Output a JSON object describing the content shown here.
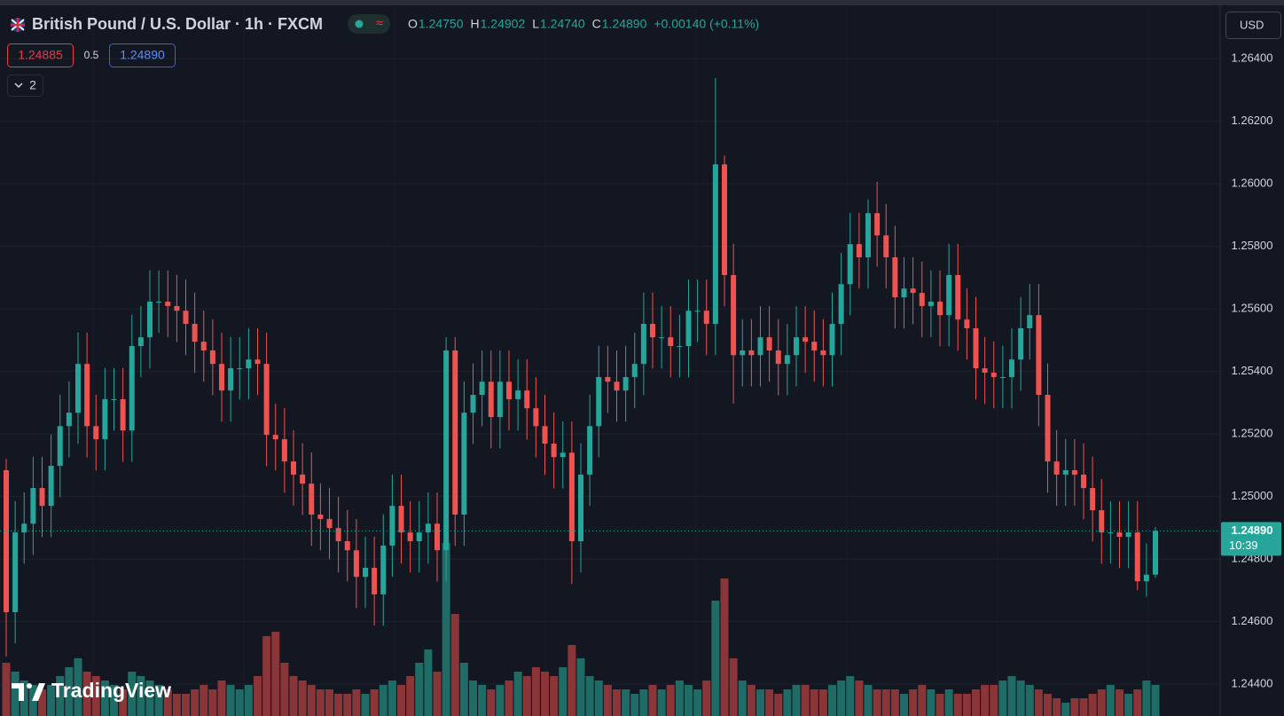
{
  "chart_data": {
    "type": "candlestick",
    "title": "British Pound / U.S. Dollar · 1h · FXCM",
    "legend_values": [
      {
        "key": "O",
        "value": "1.24750"
      },
      {
        "key": "H",
        "value": "1.24902"
      },
      {
        "key": "L",
        "value": "1.24740"
      },
      {
        "key": "C",
        "value": "1.24890"
      }
    ],
    "change": "+0.00140 (+0.11%)",
    "toolbar": {
      "sell": "1.24885",
      "spread": "0.5",
      "buy": "1.24890",
      "indicators": "2",
      "currency": "USD"
    },
    "brand": "TradingView",
    "up_color": "#26a69a",
    "down_color": "#ef5350",
    "volume_up_color": "#1f6b66",
    "volume_down_color": "#8a3538",
    "grid": true,
    "ylim": [
      1.24298,
      1.26565
    ],
    "yticks": [
      {
        "value": 1.244,
        "label": "1.24400"
      },
      {
        "value": 1.246,
        "label": "1.24600"
      },
      {
        "value": 1.248,
        "label": "1.24800"
      },
      {
        "value": 1.25,
        "label": "1.25000"
      },
      {
        "value": 1.252,
        "label": "1.25200"
      },
      {
        "value": 1.254,
        "label": "1.25400"
      },
      {
        "value": 1.256,
        "label": "1.25600"
      },
      {
        "value": 1.258,
        "label": "1.25800"
      },
      {
        "value": 1.26,
        "label": "1.26000"
      },
      {
        "value": 1.262,
        "label": "1.26200"
      },
      {
        "value": 1.264,
        "label": "1.26400"
      }
    ],
    "last_price": {
      "value": 1.2489,
      "label": "1.24890"
    },
    "countdown": "10:39",
    "volume_ylim": [
      0,
      200
    ],
    "ohlc": [
      [
        1.25084,
        1.2512,
        1.24488,
        1.2463
      ],
      [
        1.2463,
        1.24985,
        1.2453,
        1.24885
      ],
      [
        1.24885,
        1.25013,
        1.24785,
        1.24913
      ],
      [
        1.24913,
        1.25127,
        1.24813,
        1.25027
      ],
      [
        1.25027,
        1.25127,
        1.2487,
        1.2497
      ],
      [
        1.2497,
        1.25198,
        1.2487,
        1.25098
      ],
      [
        1.25098,
        1.25325,
        1.24998,
        1.25225
      ],
      [
        1.25225,
        1.25368,
        1.25125,
        1.25268
      ],
      [
        1.25268,
        1.25524,
        1.25168,
        1.25424
      ],
      [
        1.25424,
        1.25524,
        1.25125,
        1.25225
      ],
      [
        1.25225,
        1.25325,
        1.25083,
        1.25183
      ],
      [
        1.25183,
        1.25411,
        1.25083,
        1.25311
      ],
      [
        1.25311,
        1.25411,
        1.25211,
        1.25311
      ],
      [
        1.25311,
        1.25411,
        1.25111,
        1.25211
      ],
      [
        1.25211,
        1.25581,
        1.25111,
        1.25481
      ],
      [
        1.25481,
        1.25609,
        1.25381,
        1.25509
      ],
      [
        1.25509,
        1.25723,
        1.25409,
        1.25623
      ],
      [
        1.25623,
        1.25723,
        1.25523,
        1.25623
      ],
      [
        1.25623,
        1.25723,
        1.25509,
        1.25609
      ],
      [
        1.25609,
        1.25709,
        1.25494,
        1.25594
      ],
      [
        1.25594,
        1.25694,
        1.25452,
        1.25552
      ],
      [
        1.25552,
        1.25652,
        1.25395,
        1.25495
      ],
      [
        1.25495,
        1.25595,
        1.25367,
        1.25467
      ],
      [
        1.25467,
        1.25567,
        1.25324,
        1.25424
      ],
      [
        1.25424,
        1.25524,
        1.25239,
        1.25339
      ],
      [
        1.25339,
        1.2551,
        1.25239,
        1.2541
      ],
      [
        1.2541,
        1.2551,
        1.2531,
        1.2541
      ],
      [
        1.2541,
        1.25538,
        1.2531,
        1.25438
      ],
      [
        1.25438,
        1.25538,
        1.25324,
        1.25424
      ],
      [
        1.25424,
        1.25524,
        1.25097,
        1.25197
      ],
      [
        1.25197,
        1.25297,
        1.25083,
        1.25183
      ],
      [
        1.25183,
        1.25283,
        1.25012,
        1.25112
      ],
      [
        1.25112,
        1.25212,
        1.2497,
        1.2507
      ],
      [
        1.2507,
        1.2517,
        1.24941,
        1.25041
      ],
      [
        1.25041,
        1.25141,
        1.24842,
        1.24942
      ],
      [
        1.24942,
        1.25042,
        1.24828,
        1.24928
      ],
      [
        1.24928,
        1.25028,
        1.24799,
        1.24899
      ],
      [
        1.24899,
        1.24999,
        1.24757,
        1.24857
      ],
      [
        1.24857,
        1.24957,
        1.24728,
        1.24828
      ],
      [
        1.24828,
        1.24928,
        1.24643,
        1.24743
      ],
      [
        1.24743,
        1.24872,
        1.24643,
        1.24772
      ],
      [
        1.24772,
        1.24872,
        1.24587,
        1.24687
      ],
      [
        1.24687,
        1.24943,
        1.24587,
        1.24843
      ],
      [
        1.24843,
        1.2507,
        1.24743,
        1.2497
      ],
      [
        1.2497,
        1.2507,
        1.24785,
        1.24885
      ],
      [
        1.24885,
        1.24985,
        1.24757,
        1.24857
      ],
      [
        1.24857,
        1.24985,
        1.24757,
        1.24885
      ],
      [
        1.24885,
        1.25013,
        1.24785,
        1.24913
      ],
      [
        1.24913,
        1.25013,
        1.24728,
        1.24828
      ],
      [
        1.24828,
        1.25509,
        1.24728,
        1.25467
      ],
      [
        1.25467,
        1.25509,
        1.24842,
        1.24942
      ],
      [
        1.24942,
        1.25368,
        1.24842,
        1.25268
      ],
      [
        1.25268,
        1.25425,
        1.25168,
        1.25325
      ],
      [
        1.25325,
        1.25467,
        1.25225,
        1.25367
      ],
      [
        1.25367,
        1.25467,
        1.25154,
        1.25254
      ],
      [
        1.25254,
        1.25467,
        1.25154,
        1.25367
      ],
      [
        1.25367,
        1.25467,
        1.25211,
        1.25311
      ],
      [
        1.25311,
        1.25439,
        1.25211,
        1.25339
      ],
      [
        1.25339,
        1.25439,
        1.25182,
        1.25282
      ],
      [
        1.25282,
        1.25382,
        1.25125,
        1.25225
      ],
      [
        1.25225,
        1.25325,
        1.25069,
        1.25169
      ],
      [
        1.25169,
        1.25269,
        1.25026,
        1.25126
      ],
      [
        1.25126,
        1.2524,
        1.25026,
        1.2514
      ],
      [
        1.2514,
        1.2524,
        1.2472,
        1.24857
      ],
      [
        1.24857,
        1.2517,
        1.24757,
        1.2507
      ],
      [
        1.2507,
        1.25325,
        1.2497,
        1.25225
      ],
      [
        1.25225,
        1.25482,
        1.25125,
        1.25382
      ],
      [
        1.25382,
        1.25482,
        1.25267,
        1.25367
      ],
      [
        1.25367,
        1.25467,
        1.25239,
        1.25339
      ],
      [
        1.25339,
        1.25482,
        1.25239,
        1.25382
      ],
      [
        1.25382,
        1.25524,
        1.25282,
        1.25424
      ],
      [
        1.25424,
        1.25652,
        1.25324,
        1.25552
      ],
      [
        1.25552,
        1.25652,
        1.25409,
        1.25509
      ],
      [
        1.25509,
        1.25609,
        1.25409,
        1.25509
      ],
      [
        1.25509,
        1.25609,
        1.25381,
        1.25481
      ],
      [
        1.25481,
        1.25581,
        1.25381,
        1.25481
      ],
      [
        1.25481,
        1.25694,
        1.25381,
        1.25594
      ],
      [
        1.25594,
        1.25694,
        1.25494,
        1.25594
      ],
      [
        1.25594,
        1.25694,
        1.25452,
        1.25552
      ],
      [
        1.25552,
        1.26338,
        1.25452,
        1.26062
      ],
      [
        1.26062,
        1.2609,
        1.25608,
        1.25708
      ],
      [
        1.25708,
        1.25808,
        1.25297,
        1.25452
      ],
      [
        1.25452,
        1.25567,
        1.25352,
        1.25467
      ],
      [
        1.25467,
        1.25567,
        1.25352,
        1.25452
      ],
      [
        1.25452,
        1.25609,
        1.25352,
        1.25509
      ],
      [
        1.25509,
        1.25609,
        1.25367,
        1.25467
      ],
      [
        1.25467,
        1.25567,
        1.25324,
        1.25424
      ],
      [
        1.25424,
        1.25552,
        1.25324,
        1.25452
      ],
      [
        1.25452,
        1.25609,
        1.25352,
        1.25509
      ],
      [
        1.25509,
        1.25609,
        1.25395,
        1.25495
      ],
      [
        1.25495,
        1.25595,
        1.25367,
        1.25467
      ],
      [
        1.25467,
        1.25567,
        1.25352,
        1.25452
      ],
      [
        1.25452,
        1.25652,
        1.25352,
        1.25552
      ],
      [
        1.25552,
        1.25779,
        1.25452,
        1.25679
      ],
      [
        1.25679,
        1.25907,
        1.25579,
        1.25807
      ],
      [
        1.25807,
        1.25907,
        1.25665,
        1.25765
      ],
      [
        1.25765,
        1.2595,
        1.25665,
        1.25906
      ],
      [
        1.25906,
        1.26006,
        1.25735,
        1.25835
      ],
      [
        1.25835,
        1.25935,
        1.25665,
        1.25765
      ],
      [
        1.25765,
        1.25865,
        1.25537,
        1.25637
      ],
      [
        1.25637,
        1.25765,
        1.25537,
        1.25665
      ],
      [
        1.25665,
        1.25765,
        1.25551,
        1.25651
      ],
      [
        1.25651,
        1.25751,
        1.25509,
        1.25609
      ],
      [
        1.25609,
        1.25723,
        1.25509,
        1.25623
      ],
      [
        1.25623,
        1.25723,
        1.2548,
        1.2558
      ],
      [
        1.2558,
        1.25808,
        1.2548,
        1.25708
      ],
      [
        1.25708,
        1.25808,
        1.25466,
        1.25566
      ],
      [
        1.25566,
        1.25666,
        1.25438,
        1.25538
      ],
      [
        1.25538,
        1.25638,
        1.2531,
        1.2541
      ],
      [
        1.2541,
        1.2551,
        1.25296,
        1.25396
      ],
      [
        1.25396,
        1.25496,
        1.25282,
        1.25382
      ],
      [
        1.25382,
        1.25482,
        1.25282,
        1.25382
      ],
      [
        1.25382,
        1.25538,
        1.25282,
        1.25438
      ],
      [
        1.25438,
        1.25638,
        1.25338,
        1.25538
      ],
      [
        1.25538,
        1.2568,
        1.25438,
        1.2558
      ],
      [
        1.2558,
        1.2568,
        1.25225,
        1.25325
      ],
      [
        1.25325,
        1.25425,
        1.25012,
        1.25112
      ],
      [
        1.25112,
        1.25212,
        1.2497,
        1.2507
      ],
      [
        1.2507,
        1.25184,
        1.2497,
        1.25084
      ],
      [
        1.25084,
        1.25184,
        1.2497,
        1.2507
      ],
      [
        1.2507,
        1.2517,
        1.24927,
        1.25027
      ],
      [
        1.25027,
        1.25127,
        1.24856,
        1.24956
      ],
      [
        1.24956,
        1.25056,
        1.24785,
        1.24885
      ],
      [
        1.24885,
        1.24985,
        1.24785,
        1.24885
      ],
      [
        1.24885,
        1.24985,
        1.24771,
        1.24871
      ],
      [
        1.24871,
        1.24985,
        1.24771,
        1.24885
      ],
      [
        1.24885,
        1.24985,
        1.247,
        1.24729
      ],
      [
        1.24729,
        1.2485,
        1.2468,
        1.2475
      ],
      [
        1.2475,
        1.24902,
        1.2474,
        1.2489
      ]
    ],
    "volume": [
      60,
      50,
      40,
      35,
      30,
      35,
      45,
      55,
      65,
      50,
      45,
      40,
      35,
      30,
      50,
      45,
      40,
      35,
      30,
      25,
      25,
      30,
      35,
      30,
      40,
      35,
      30,
      35,
      45,
      90,
      95,
      60,
      45,
      40,
      35,
      30,
      30,
      25,
      25,
      30,
      25,
      30,
      35,
      40,
      35,
      45,
      60,
      75,
      50,
      195,
      115,
      60,
      40,
      35,
      30,
      35,
      40,
      50,
      45,
      55,
      50,
      45,
      55,
      80,
      65,
      45,
      40,
      35,
      30,
      30,
      25,
      30,
      35,
      30,
      35,
      40,
      35,
      30,
      40,
      130,
      155,
      65,
      40,
      35,
      30,
      30,
      25,
      30,
      35,
      35,
      30,
      30,
      35,
      40,
      45,
      40,
      35,
      30,
      30,
      30,
      25,
      30,
      35,
      30,
      25,
      30,
      25,
      25,
      30,
      35,
      35,
      40,
      45,
      40,
      35,
      30,
      25,
      20,
      15,
      20,
      20,
      25,
      30,
      35,
      30,
      25,
      30,
      40,
      35
    ]
  }
}
